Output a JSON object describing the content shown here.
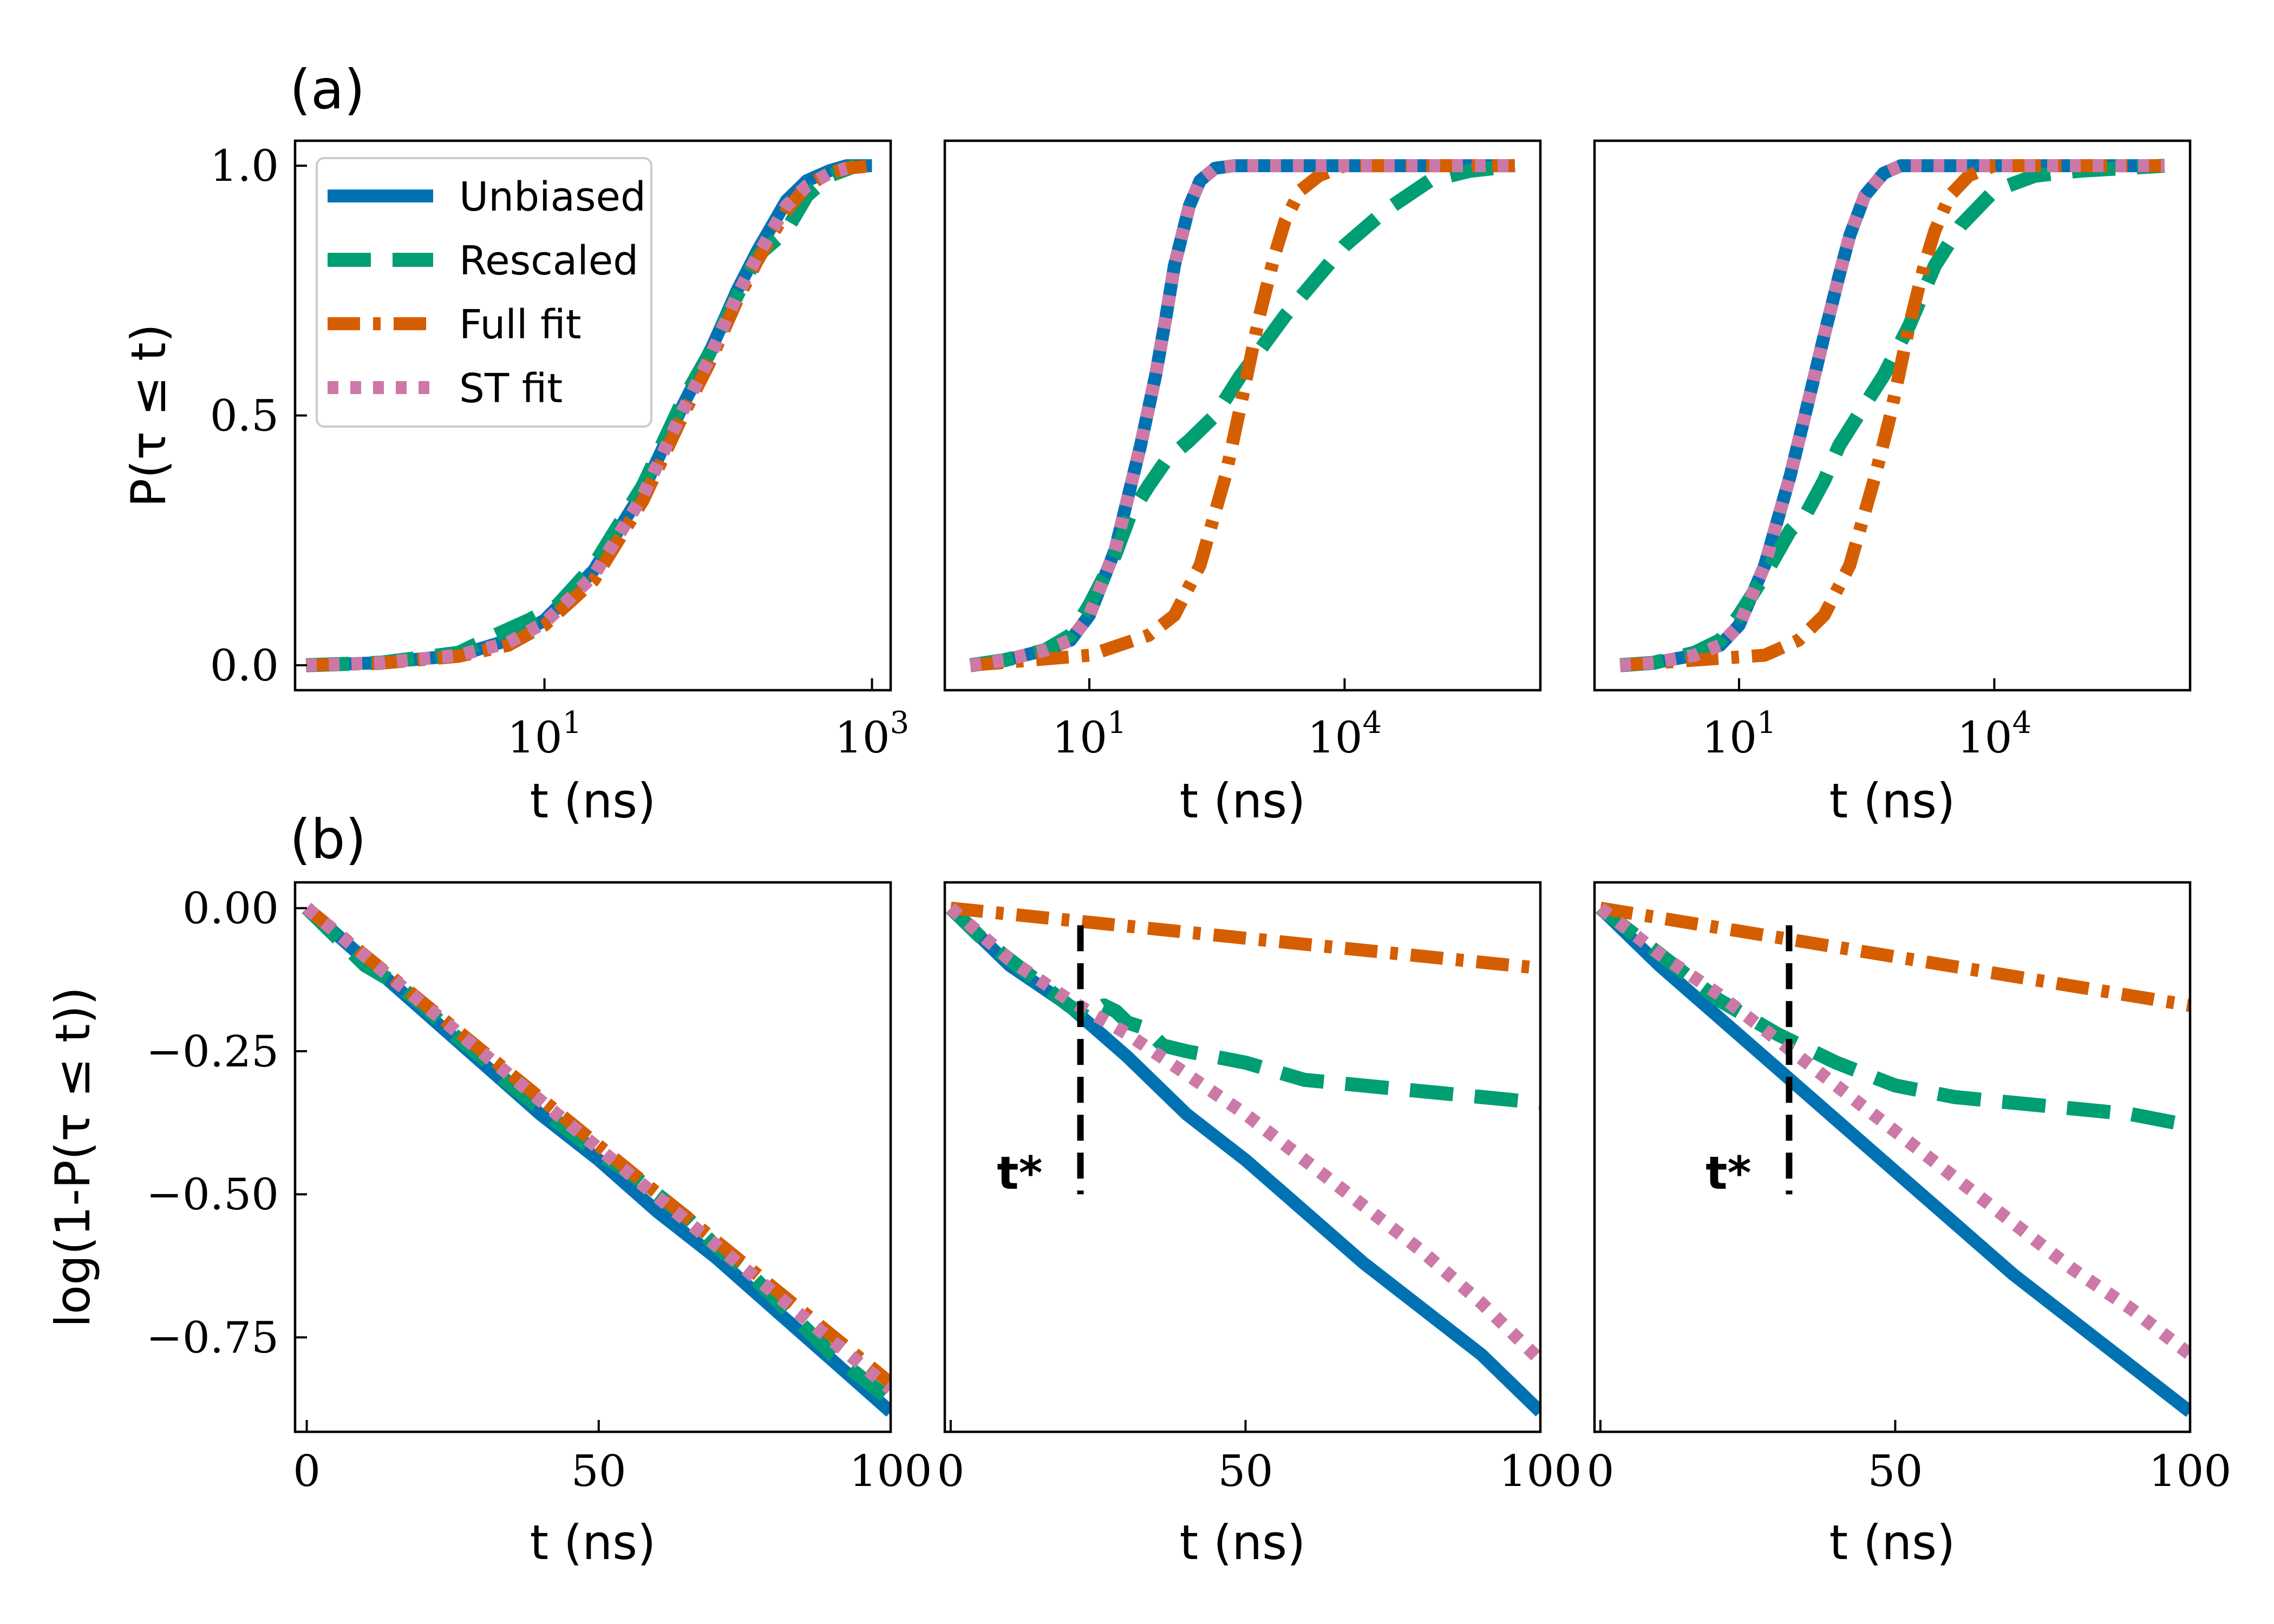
{
  "figure": {
    "panel_labels": [
      "(a)",
      "(b)"
    ],
    "t_star_label": "t*"
  },
  "legend": {
    "placement": "top-left of first panel",
    "entries": [
      {
        "label": "Unbiased",
        "key": "unbiased"
      },
      {
        "label": "Rescaled",
        "key": "rescaled"
      },
      {
        "label": "Full fit",
        "key": "full"
      },
      {
        "label": "ST fit",
        "key": "st"
      }
    ]
  },
  "colors": {
    "unbiased": "#0072B2",
    "rescaled": "#009E73",
    "full": "#D55E00",
    "st": "#CC79A7",
    "tstar": "#000000"
  },
  "chart_data": [
    {
      "type": "line",
      "id": "a1",
      "xscale": "log",
      "xlim": [
        0.3,
        1300
      ],
      "ylim": [
        -0.05,
        1.05
      ],
      "xticks": [
        {
          "v": 10,
          "base": "10",
          "exp": "1"
        },
        {
          "v": 1000,
          "base": "10",
          "exp": "3"
        }
      ],
      "yticks": [
        {
          "v": 0,
          "label": "0.0"
        },
        {
          "v": 0.5,
          "label": "0.5"
        },
        {
          "v": 1,
          "label": "1.0"
        }
      ],
      "xlabel": "t (ns)",
      "ylabel": "P(τ ≤ t)",
      "series": [
        {
          "key": "unbiased",
          "x": [
            0.35,
            1,
            3,
            6,
            10,
            20,
            40,
            70,
            100,
            150,
            200,
            300,
            400,
            550,
            700,
            1000
          ],
          "y": [
            0,
            0.005,
            0.02,
            0.05,
            0.09,
            0.19,
            0.35,
            0.52,
            0.62,
            0.75,
            0.83,
            0.93,
            0.97,
            0.99,
            1.0,
            1.0
          ]
        },
        {
          "key": "rescaled",
          "x": [
            0.35,
            1,
            3,
            5,
            8,
            12,
            20,
            40,
            70,
            100,
            150,
            200,
            300,
            400,
            550,
            800
          ],
          "y": [
            0,
            0.005,
            0.025,
            0.06,
            0.09,
            0.12,
            0.2,
            0.36,
            0.53,
            0.62,
            0.74,
            0.82,
            0.87,
            0.94,
            0.98,
            1.0
          ]
        },
        {
          "key": "full",
          "x": [
            0.35,
            1,
            3,
            6,
            10,
            20,
            40,
            70,
            100,
            150,
            200,
            300,
            400,
            550,
            700,
            1000
          ],
          "y": [
            0,
            0.004,
            0.018,
            0.04,
            0.08,
            0.17,
            0.33,
            0.5,
            0.6,
            0.73,
            0.81,
            0.91,
            0.96,
            0.985,
            0.995,
            1.0
          ]
        },
        {
          "key": "st",
          "x": [
            0.35,
            1,
            3,
            6,
            10,
            20,
            40,
            70,
            100,
            150,
            200,
            300,
            400,
            550,
            700
          ],
          "y": [
            0,
            0.005,
            0.02,
            0.045,
            0.085,
            0.18,
            0.34,
            0.51,
            0.61,
            0.74,
            0.82,
            0.92,
            0.96,
            0.985,
            0.995
          ]
        }
      ]
    },
    {
      "type": "line",
      "id": "a2",
      "xscale": "log",
      "xlim": [
        0.2,
        2000000
      ],
      "ylim": [
        -0.05,
        1.05
      ],
      "xticks": [
        {
          "v": 10,
          "base": "10",
          "exp": "1"
        },
        {
          "v": 10000,
          "base": "10",
          "exp": "4"
        }
      ],
      "yticks": [],
      "xlabel": "t (ns)",
      "series": [
        {
          "key": "unbiased",
          "x": [
            0.4,
            1,
            3,
            6,
            10,
            20,
            40,
            60,
            80,
            100,
            150,
            200,
            300,
            500,
            1000,
            10000,
            1000000
          ],
          "y": [
            0,
            0.01,
            0.03,
            0.05,
            0.1,
            0.23,
            0.44,
            0.58,
            0.7,
            0.8,
            0.92,
            0.97,
            0.995,
            1.0,
            1.0,
            1.0,
            1.0
          ]
        },
        {
          "key": "rescaled",
          "x": [
            0.4,
            1,
            3,
            6,
            10,
            20,
            30,
            50,
            80,
            150,
            300,
            600,
            1000,
            2000,
            5000,
            10000,
            30000,
            100000,
            300000,
            1000000
          ],
          "y": [
            0,
            0.01,
            0.03,
            0.06,
            0.12,
            0.22,
            0.3,
            0.36,
            0.41,
            0.45,
            0.5,
            0.58,
            0.63,
            0.7,
            0.78,
            0.84,
            0.91,
            0.97,
            0.99,
            1.0
          ]
        },
        {
          "key": "full",
          "x": [
            0.4,
            10,
            50,
            100,
            200,
            400,
            600,
            1000,
            1500,
            2000,
            3000,
            5000,
            7000,
            10000,
            20000,
            100000,
            1000000
          ],
          "y": [
            0,
            0.02,
            0.06,
            0.1,
            0.2,
            0.38,
            0.52,
            0.7,
            0.82,
            0.89,
            0.95,
            0.98,
            0.99,
            1.0,
            1.0,
            1.0,
            1.0
          ]
        },
        {
          "key": "st",
          "x": [
            0.4,
            1,
            3,
            6,
            10,
            20,
            40,
            60,
            80,
            100,
            150,
            200,
            300,
            500,
            1000,
            10000,
            1000000
          ],
          "y": [
            0,
            0.01,
            0.03,
            0.05,
            0.1,
            0.23,
            0.44,
            0.58,
            0.7,
            0.8,
            0.92,
            0.97,
            0.995,
            1.0,
            1.0,
            1.0,
            1.0
          ]
        }
      ]
    },
    {
      "type": "line",
      "id": "a3",
      "xscale": "log",
      "xlim": [
        0.2,
        2000000
      ],
      "ylim": [
        -0.05,
        1.05
      ],
      "xticks": [
        {
          "v": 10,
          "base": "10",
          "exp": "1"
        },
        {
          "v": 10000,
          "base": "10",
          "exp": "4"
        }
      ],
      "yticks": [],
      "xlabel": "t (ns)",
      "series": [
        {
          "key": "unbiased",
          "x": [
            0.4,
            1,
            3,
            6,
            10,
            20,
            40,
            70,
            100,
            150,
            200,
            300,
            500,
            800,
            1500,
            10000,
            1000000
          ],
          "y": [
            0,
            0.005,
            0.02,
            0.04,
            0.08,
            0.2,
            0.38,
            0.55,
            0.66,
            0.78,
            0.86,
            0.94,
            0.985,
            1.0,
            1.0,
            1.0,
            1.0
          ]
        },
        {
          "key": "rescaled",
          "x": [
            0.4,
            1,
            3,
            6,
            10,
            20,
            40,
            60,
            100,
            150,
            250,
            500,
            1000,
            2000,
            4000,
            10000,
            30000,
            100000,
            1000000
          ],
          "y": [
            0,
            0.005,
            0.025,
            0.05,
            0.1,
            0.18,
            0.27,
            0.3,
            0.37,
            0.44,
            0.5,
            0.58,
            0.68,
            0.8,
            0.88,
            0.95,
            0.98,
            0.99,
            1.0
          ]
        },
        {
          "key": "full",
          "x": [
            0.4,
            20,
            50,
            100,
            200,
            400,
            600,
            1000,
            1500,
            2000,
            3000,
            5000,
            7000,
            10000,
            100000,
            1000000
          ],
          "y": [
            0,
            0.02,
            0.05,
            0.1,
            0.2,
            0.38,
            0.5,
            0.68,
            0.8,
            0.87,
            0.94,
            0.98,
            0.99,
            1.0,
            1.0,
            1.0
          ]
        },
        {
          "key": "st",
          "x": [
            0.4,
            1,
            3,
            6,
            10,
            20,
            40,
            70,
            100,
            150,
            200,
            300,
            500,
            800,
            1500,
            10000,
            1000000
          ],
          "y": [
            0,
            0.005,
            0.02,
            0.04,
            0.08,
            0.2,
            0.38,
            0.55,
            0.66,
            0.78,
            0.86,
            0.94,
            0.985,
            1.0,
            1.0,
            1.0,
            1.0
          ]
        }
      ]
    },
    {
      "type": "line",
      "id": "b1",
      "xscale": "linear",
      "xlim": [
        -2,
        100
      ],
      "ylim": [
        -0.915,
        0.045
      ],
      "xticks": [
        {
          "v": 0,
          "label": "0"
        },
        {
          "v": 50,
          "label": "50"
        },
        {
          "v": 100,
          "label": "100"
        }
      ],
      "yticks": [
        {
          "v": 0,
          "label": "0.00"
        },
        {
          "v": -0.25,
          "label": "−0.25"
        },
        {
          "v": -0.5,
          "label": "−0.50"
        },
        {
          "v": -0.75,
          "label": "−0.75"
        }
      ],
      "xlabel": "t (ns)",
      "ylabel": "log(1-P(τ ≤ t))",
      "series": [
        {
          "key": "unbiased",
          "x": [
            0,
            10,
            20,
            30,
            40,
            50,
            60,
            70,
            80,
            90,
            100
          ],
          "y": [
            0,
            -0.09,
            -0.18,
            -0.27,
            -0.36,
            -0.44,
            -0.53,
            -0.61,
            -0.7,
            -0.79,
            -0.88
          ]
        },
        {
          "key": "rescaled",
          "x": [
            0,
            5,
            10,
            15,
            20,
            25,
            30,
            35,
            40,
            45,
            50,
            55,
            60,
            65,
            70,
            75,
            80,
            85,
            90,
            95,
            100
          ],
          "y": [
            0,
            -0.05,
            -0.1,
            -0.13,
            -0.17,
            -0.22,
            -0.26,
            -0.31,
            -0.35,
            -0.39,
            -0.43,
            -0.46,
            -0.5,
            -0.54,
            -0.59,
            -0.63,
            -0.68,
            -0.73,
            -0.78,
            -0.82,
            -0.86
          ]
        },
        {
          "key": "full",
          "x": [
            0,
            100
          ],
          "y": [
            0,
            -0.83
          ]
        },
        {
          "key": "st",
          "x": [
            0,
            100
          ],
          "y": [
            0,
            -0.84
          ]
        }
      ]
    },
    {
      "type": "line",
      "id": "b2",
      "xscale": "linear",
      "xlim": [
        -1,
        100
      ],
      "ylim": [
        -0.915,
        0.045
      ],
      "xticks": [
        {
          "v": 0,
          "label": "0"
        },
        {
          "v": 50,
          "label": "50"
        },
        {
          "v": 100,
          "label": "100"
        }
      ],
      "yticks": [],
      "xlabel": "t (ns)",
      "tstar": {
        "x": 22,
        "y_top": -0.03,
        "y_bottom": -0.5
      },
      "series": [
        {
          "key": "unbiased",
          "x": [
            0,
            10,
            20,
            30,
            40,
            50,
            60,
            70,
            80,
            90,
            100
          ],
          "y": [
            0,
            -0.1,
            -0.17,
            -0.26,
            -0.36,
            -0.44,
            -0.53,
            -0.62,
            -0.7,
            -0.78,
            -0.88
          ]
        },
        {
          "key": "rescaled",
          "x": [
            0,
            5,
            10,
            15,
            20,
            23,
            26,
            28,
            30,
            33,
            36,
            40,
            50,
            60,
            70,
            80,
            90,
            100
          ],
          "y": [
            0,
            -0.05,
            -0.09,
            -0.13,
            -0.17,
            -0.19,
            -0.17,
            -0.18,
            -0.2,
            -0.21,
            -0.24,
            -0.25,
            -0.27,
            -0.3,
            -0.31,
            -0.32,
            -0.33,
            -0.34
          ]
        },
        {
          "key": "full",
          "x": [
            0,
            100
          ],
          "y": [
            0,
            -0.105
          ]
        },
        {
          "key": "st",
          "x": [
            0,
            10,
            20,
            30,
            40,
            50,
            60,
            70,
            80,
            90,
            100
          ],
          "y": [
            0,
            -0.09,
            -0.16,
            -0.22,
            -0.29,
            -0.36,
            -0.44,
            -0.52,
            -0.6,
            -0.69,
            -0.79
          ]
        }
      ]
    },
    {
      "type": "line",
      "id": "b3",
      "xscale": "linear",
      "xlim": [
        -1,
        100
      ],
      "ylim": [
        -0.915,
        0.045
      ],
      "xticks": [
        {
          "v": 0,
          "label": "0"
        },
        {
          "v": 50,
          "label": "50"
        },
        {
          "v": 100,
          "label": "100"
        }
      ],
      "yticks": [],
      "xlabel": "t (ns)",
      "tstar": {
        "x": 32,
        "y_top": -0.03,
        "y_bottom": -0.5
      },
      "series": [
        {
          "key": "unbiased",
          "x": [
            0,
            10,
            20,
            30,
            40,
            50,
            60,
            70,
            80,
            90,
            100
          ],
          "y": [
            0,
            -0.1,
            -0.19,
            -0.28,
            -0.37,
            -0.46,
            -0.55,
            -0.64,
            -0.72,
            -0.8,
            -0.88
          ]
        },
        {
          "key": "rescaled",
          "x": [
            0,
            10,
            20,
            30,
            40,
            50,
            60,
            70,
            80,
            90,
            100
          ],
          "y": [
            0,
            -0.08,
            -0.16,
            -0.22,
            -0.27,
            -0.31,
            -0.33,
            -0.34,
            -0.35,
            -0.36,
            -0.38
          ]
        },
        {
          "key": "full",
          "x": [
            0,
            100
          ],
          "y": [
            0,
            -0.17
          ]
        },
        {
          "key": "st",
          "x": [
            0,
            10,
            20,
            30,
            40,
            50,
            60,
            70,
            80,
            90,
            100
          ],
          "y": [
            0,
            -0.08,
            -0.15,
            -0.23,
            -0.31,
            -0.39,
            -0.47,
            -0.55,
            -0.63,
            -0.7,
            -0.78
          ]
        }
      ]
    }
  ]
}
